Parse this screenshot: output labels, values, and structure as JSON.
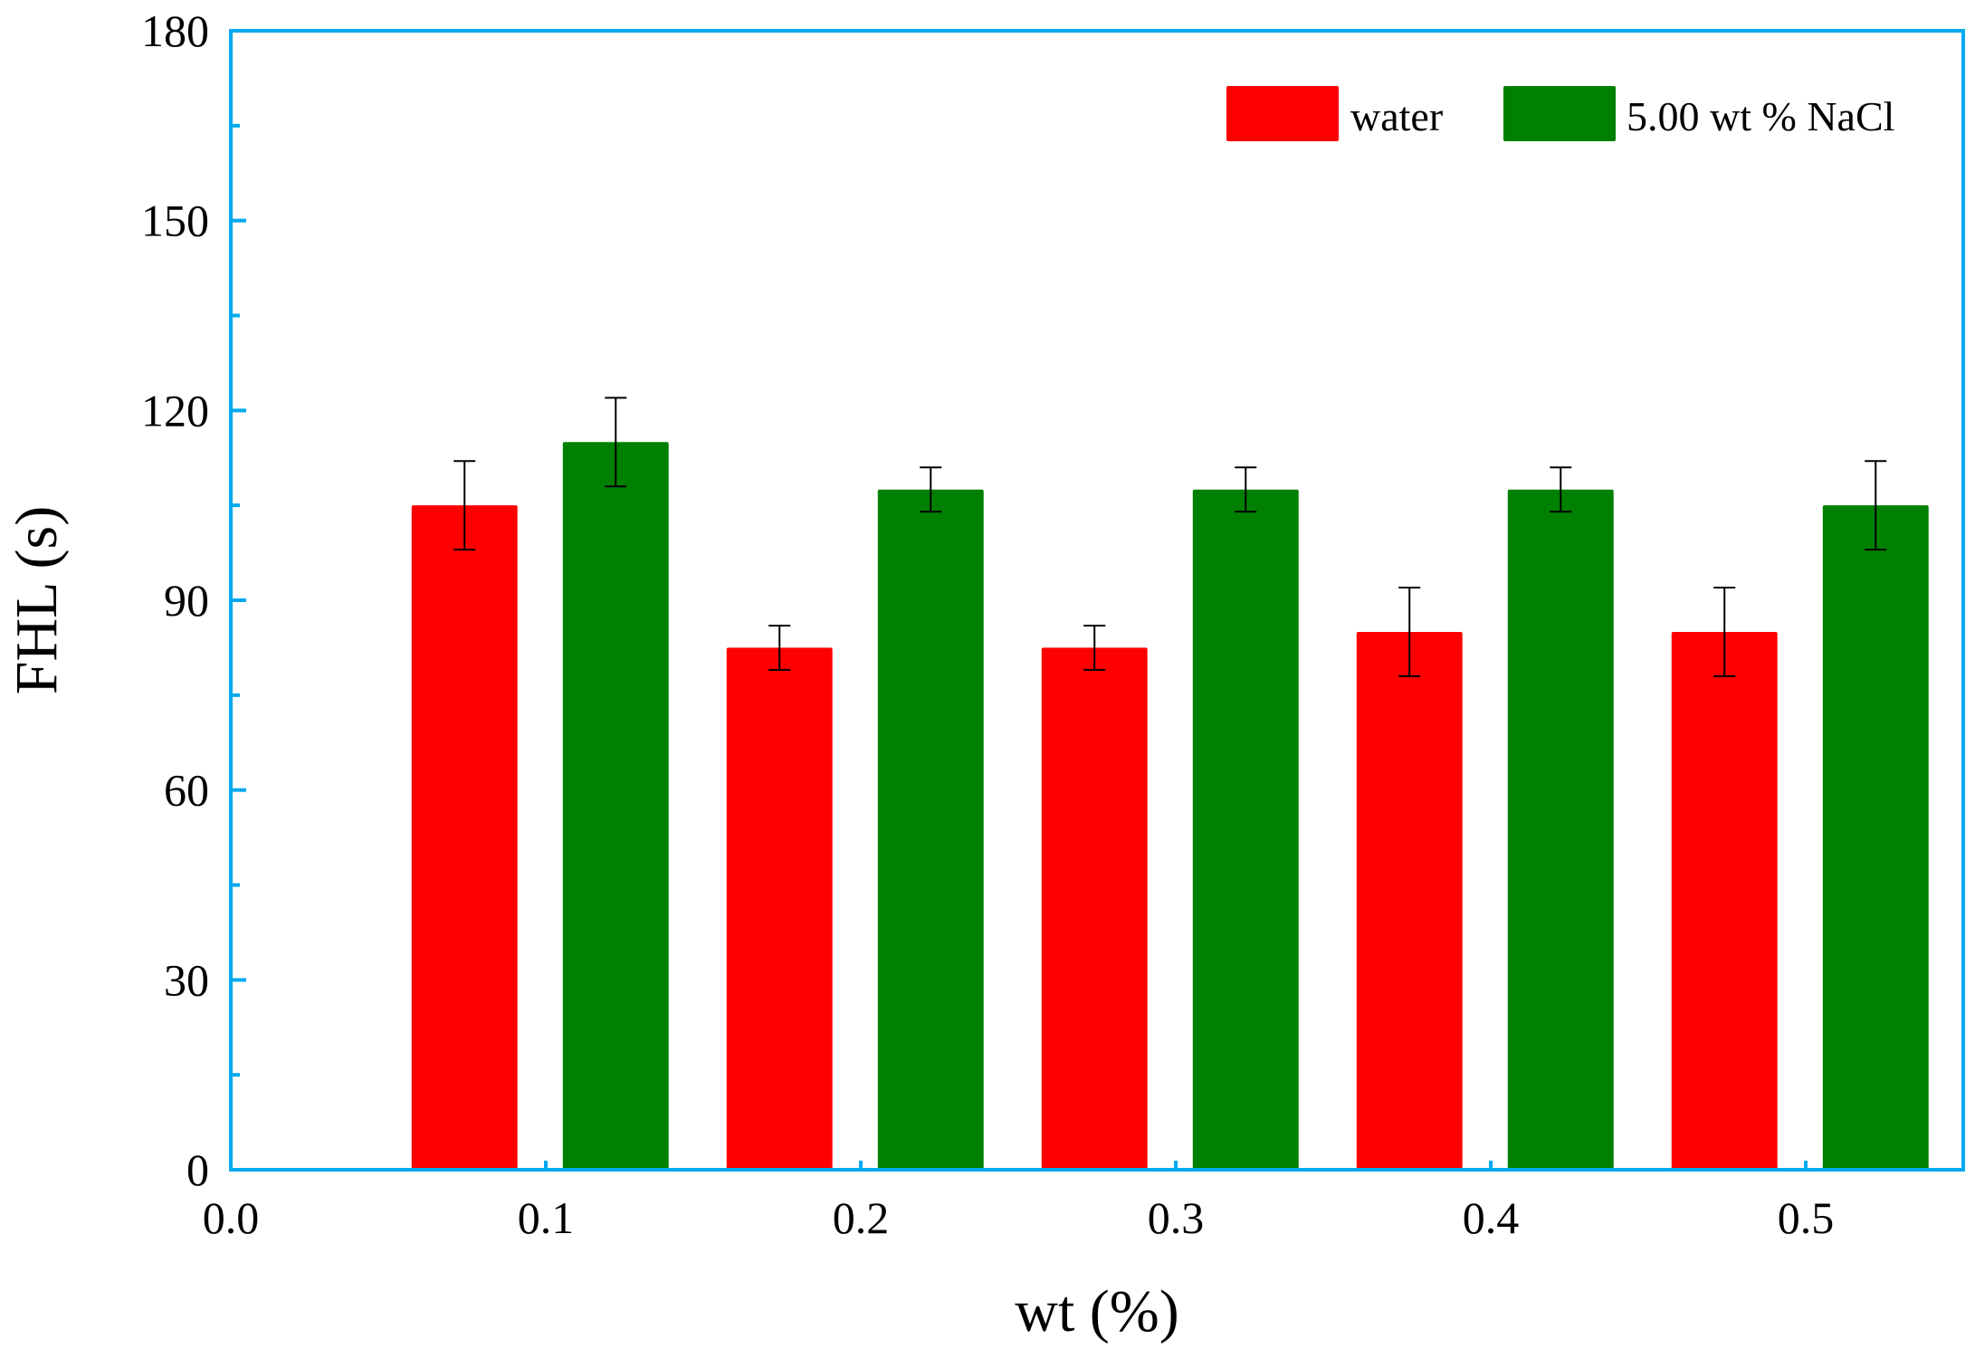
{
  "chart_data": {
    "type": "bar",
    "xlabel": "wt (%)",
    "ylabel": "FHL (s)",
    "xlim": [
      0.0,
      0.55
    ],
    "ylim": [
      0,
      180
    ],
    "x_ticks": [
      "0.0",
      "0.1",
      "0.2",
      "0.3",
      "0.4",
      "0.5"
    ],
    "y_ticks": [
      "0",
      "30",
      "60",
      "90",
      "120",
      "150",
      "180"
    ],
    "categories": [
      0.1,
      0.2,
      0.3,
      0.4,
      0.5
    ],
    "series": [
      {
        "name": "water",
        "color": "#ff0000",
        "values": [
          105,
          82.5,
          82.5,
          85,
          85
        ],
        "errors": [
          7,
          3.5,
          3.5,
          7,
          7
        ]
      },
      {
        "name": "5.00 wt % NaCl",
        "color": "#008000",
        "values": [
          115,
          107.5,
          107.5,
          107.5,
          105
        ],
        "errors": [
          7,
          3.5,
          3.5,
          3.5,
          7
        ]
      }
    ],
    "grid": false,
    "legend_position": "top-right",
    "axis_color": "#00aaee"
  }
}
